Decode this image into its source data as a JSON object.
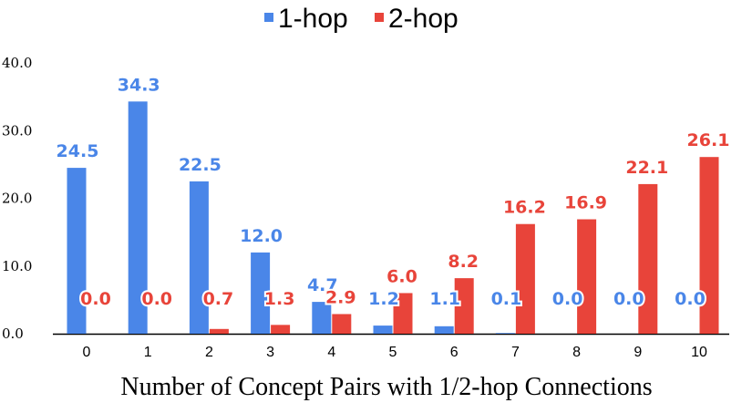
{
  "chart_data": {
    "type": "bar",
    "categories": [
      "0",
      "1",
      "2",
      "3",
      "4",
      "5",
      "6",
      "7",
      "8",
      "9",
      "10"
    ],
    "series": [
      {
        "name": "1-hop",
        "color": "#4a86e8",
        "values": [
          24.5,
          34.3,
          22.5,
          12.0,
          4.7,
          1.2,
          1.1,
          0.1,
          0.0,
          0.0,
          0.0
        ],
        "labels": [
          "24.5",
          "34.3",
          "22.5",
          "12.0",
          "4.7",
          "1.2",
          "1.1",
          "0.1",
          "0.0",
          "0.0",
          "0.0"
        ]
      },
      {
        "name": "2-hop",
        "color": "#e8443a",
        "values": [
          0.0,
          0.0,
          0.7,
          1.3,
          2.9,
          6.0,
          8.2,
          16.2,
          16.9,
          22.1,
          26.1
        ],
        "labels": [
          "0.0",
          "0.0",
          "0.7",
          "1.3",
          "2.9",
          "6.0",
          "8.2",
          "16.2",
          "16.9",
          "22.1",
          "26.1"
        ]
      }
    ],
    "title": "",
    "xlabel": "Number of Concept Pairs with 1/2-hop Connections",
    "ylabel": "",
    "ylim": [
      0,
      40
    ],
    "yticks": [
      "0.0",
      "10.0",
      "20.0",
      "30.0",
      "40.0"
    ],
    "grid": false,
    "legend_position": "top-center"
  }
}
